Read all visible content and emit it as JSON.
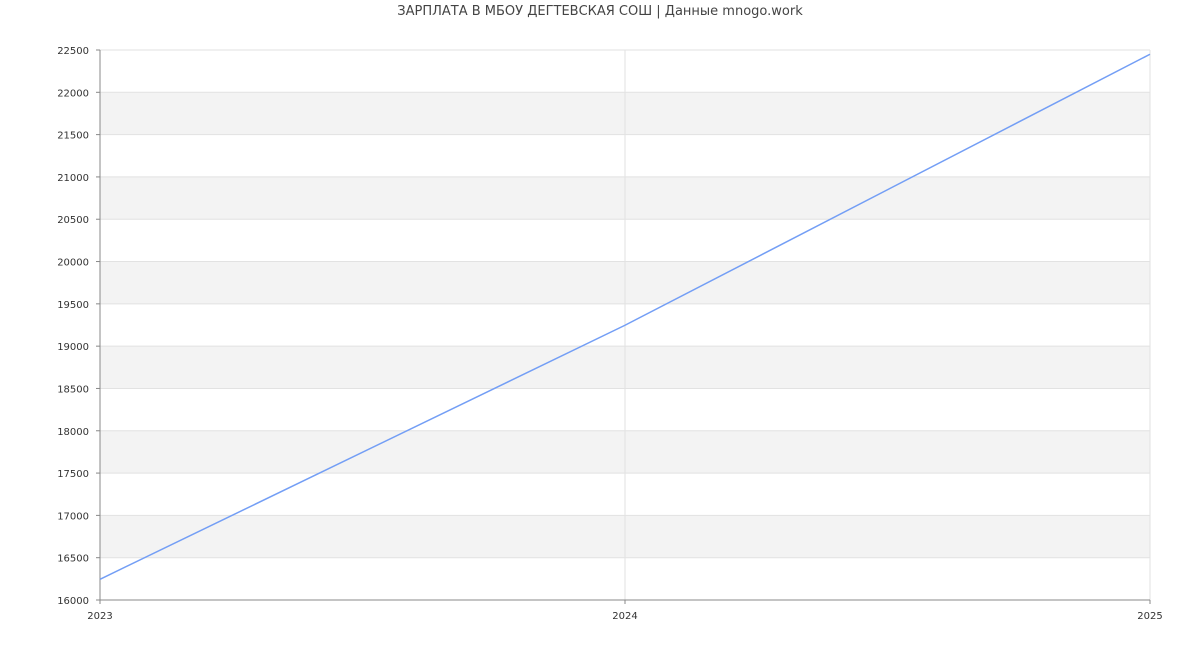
{
  "chart_data": {
    "type": "line",
    "title": "ЗАРПЛАТА В МБОУ  ДЕГТЕВСКАЯ СОШ | Данные mnogo.work",
    "xlabel": "",
    "ylabel": "",
    "x": [
      2023,
      2024,
      2025
    ],
    "x_tick_labels": [
      "2023",
      "2024",
      "2025"
    ],
    "xlim": [
      2023,
      2025
    ],
    "ylim": [
      16000,
      22500
    ],
    "y_ticks": [
      16000,
      16500,
      17000,
      17500,
      18000,
      18500,
      19000,
      19500,
      20000,
      20500,
      21000,
      21500,
      22000,
      22500
    ],
    "series": [
      {
        "values": [
          16245,
          19247,
          22450
        ],
        "color": "#739ef5"
      }
    ],
    "grid": true,
    "band_color": "#f3f3f3",
    "legend": "none"
  }
}
